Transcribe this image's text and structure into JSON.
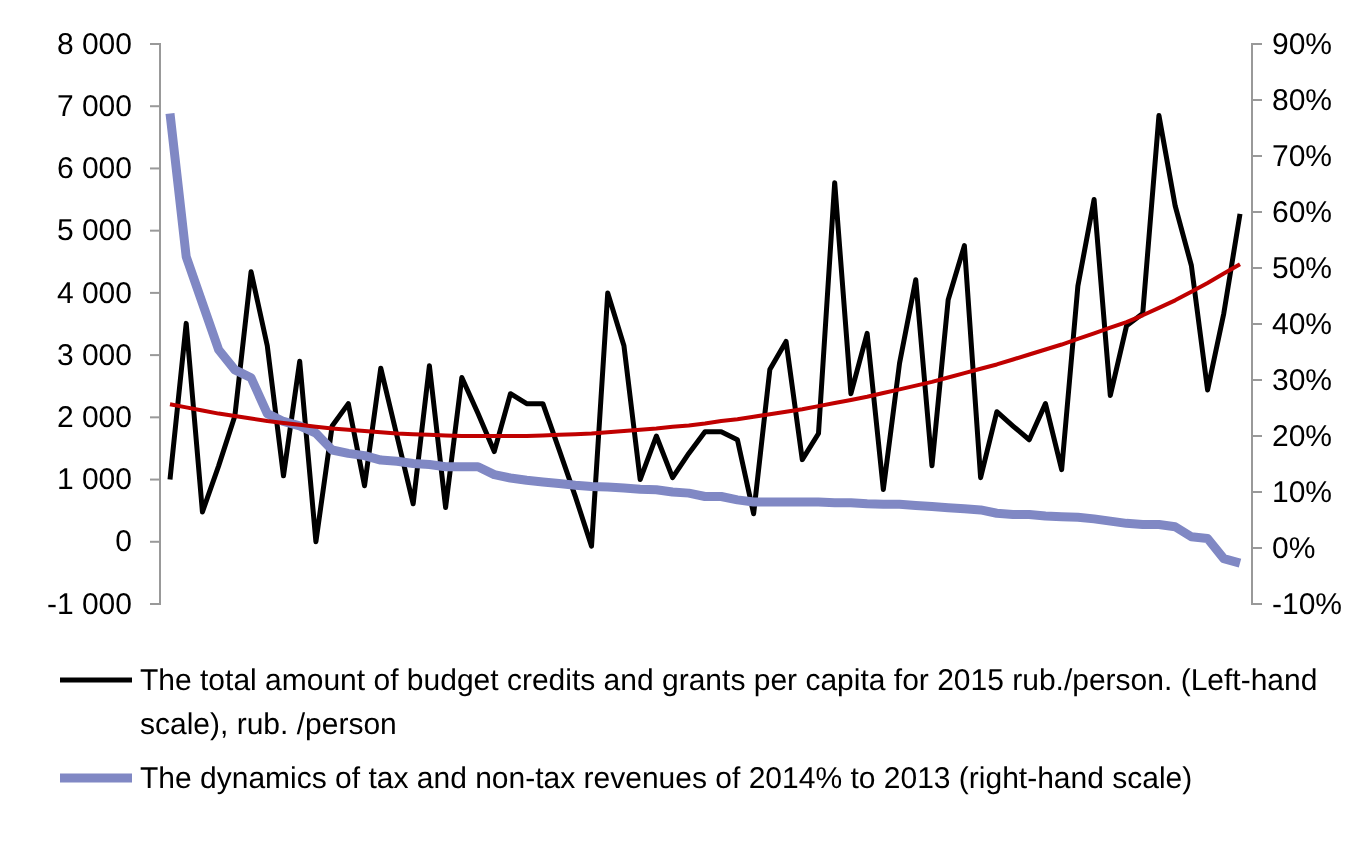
{
  "chart_data": {
    "type": "line",
    "categories": [
      null,
      null,
      null,
      null,
      null,
      null,
      null,
      null,
      null,
      null,
      null,
      null,
      null,
      null,
      null,
      null,
      null,
      null,
      null,
      null,
      null,
      null,
      null,
      null,
      null,
      null,
      null,
      null,
      null,
      null,
      null,
      null,
      null,
      null,
      null,
      null,
      null,
      null,
      null,
      null,
      null,
      null,
      null,
      null,
      null,
      null,
      null,
      null,
      null,
      null,
      null,
      null,
      null,
      null,
      null,
      null,
      null,
      null,
      null,
      null,
      null,
      null,
      null,
      null,
      null,
      null,
      null
    ],
    "series": [
      {
        "name": "The total amount of budget credits and grants per capita for 2015 rub./person. (Left-hand scale), rub. /person",
        "color": "#000000",
        "values": [
          1000,
          3510,
          480,
          1220,
          2020,
          4340,
          3150,
          1060,
          2900,
          0,
          1860,
          2220,
          900,
          2790,
          1700,
          610,
          2830,
          550,
          2640,
          2060,
          1450,
          2380,
          2220,
          2220,
          1480,
          730,
          -70,
          4000,
          3150,
          1000,
          1700,
          1030,
          1420,
          1770,
          1770,
          1640,
          450,
          2770,
          3220,
          1320,
          1740,
          5770,
          2380,
          3350,
          840,
          2870,
          4210,
          1220,
          3890,
          4760,
          1030,
          2090,
          1860,
          1640,
          2220,
          1160,
          4110,
          5500,
          2350,
          3470,
          3670,
          6850,
          5400,
          4440,
          2440,
          3670,
          5270
        ]
      },
      {
        "name": "The dynamics of tax and non-tax revenues of 2014% to 2013 (right-hand scale)",
        "color": "#8088c4",
        "axis": "y2",
        "values": [
          77.6,
          52,
          43.7,
          35.4,
          31.8,
          30.4,
          24,
          22.6,
          21.8,
          20.5,
          17.5,
          16.9,
          16.5,
          15.7,
          15.5,
          15.1,
          14.9,
          14.5,
          14.5,
          14.5,
          13.1,
          12.5,
          12.1,
          11.8,
          11.5,
          11.2,
          11,
          10.9,
          10.7,
          10.5,
          10.4,
          10,
          9.8,
          9.2,
          9.2,
          8.6,
          8.2,
          8.2,
          8.2,
          8.2,
          8.2,
          8.1,
          8.1,
          7.9,
          7.8,
          7.8,
          7.6,
          7.4,
          7.2,
          7,
          6.8,
          6.2,
          6,
          6,
          5.7,
          5.6,
          5.5,
          5.2,
          4.8,
          4.4,
          4.2,
          4.2,
          3.8,
          2,
          1.7,
          -1.9,
          -2.7
        ]
      },
      {
        "color": "#c00000",
        "values": [
          2210,
          2160,
          2110,
          2060,
          2020,
          1980,
          1940,
          1910,
          1880,
          1850,
          1820,
          1800,
          1780,
          1760,
          1740,
          1730,
          1720,
          1710,
          1700,
          1700,
          1700,
          1700,
          1700,
          1710,
          1720,
          1730,
          1740,
          1760,
          1780,
          1800,
          1820,
          1850,
          1870,
          1900,
          1940,
          1970,
          2010,
          2050,
          2090,
          2130,
          2180,
          2230,
          2280,
          2330,
          2390,
          2450,
          2510,
          2570,
          2640,
          2710,
          2780,
          2850,
          2930,
          3010,
          3090,
          3170,
          3260,
          3350,
          3440,
          3530,
          3640,
          3760,
          3880,
          4020,
          4160,
          4310,
          4460
        ]
      }
    ],
    "ylim": [
      -1000,
      8000
    ],
    "yticks": [
      {
        "value": -1000,
        "label": "-1 000"
      },
      0,
      {
        "value": 1000,
        "label": "1 000"
      },
      {
        "value": 2000,
        "label": "2 000"
      },
      {
        "value": 3000,
        "label": "3 000"
      },
      {
        "value": 4000,
        "label": "4 000"
      },
      {
        "value": 5000,
        "label": "5 000"
      },
      {
        "value": 6000,
        "label": "6 000"
      },
      {
        "value": 7000,
        "label": "7 000"
      },
      {
        "value": 8000,
        "label": "8 000"
      }
    ],
    "y2lim": [
      -10,
      90
    ],
    "y2ticks": [
      {
        "value": -10,
        "label": "-10%"
      },
      {
        "value": 0,
        "label": "0%"
      },
      {
        "value": 10,
        "label": "10%"
      },
      {
        "value": 20,
        "label": "20%"
      },
      {
        "value": 30,
        "label": "30%"
      },
      {
        "value": 40,
        "label": "40%"
      },
      {
        "value": 50,
        "label": "50%"
      },
      {
        "value": 60,
        "label": "60%"
      },
      {
        "value": 70,
        "label": "70%"
      },
      {
        "value": 80,
        "label": "80%"
      },
      {
        "value": 90,
        "label": "90%"
      }
    ],
    "legend": "bottom",
    "grid": false
  }
}
